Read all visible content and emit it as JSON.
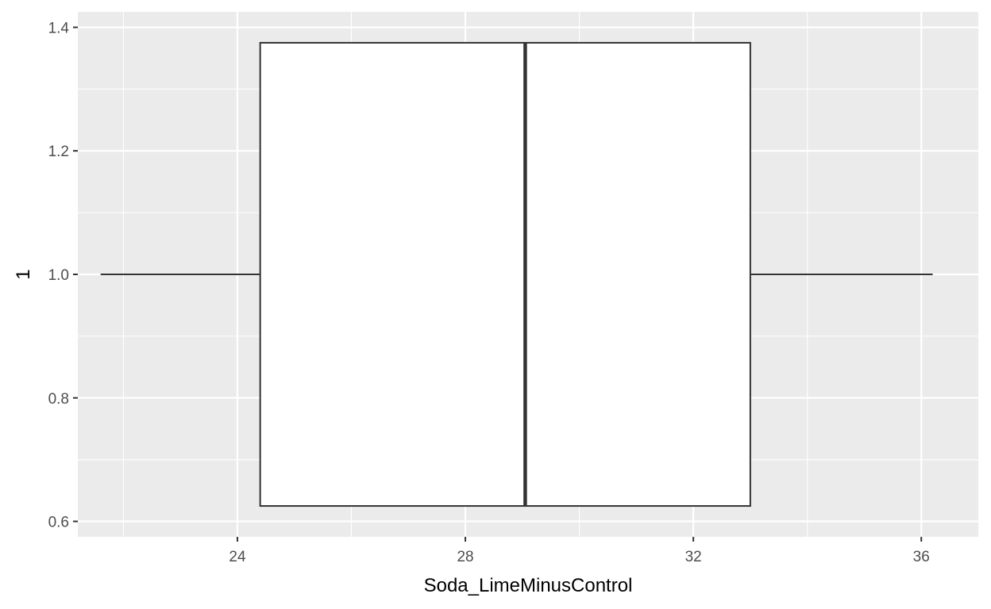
{
  "chart_data": {
    "type": "boxplot",
    "xlabel": "Soda_LimeMinusControl",
    "ylabel": "1",
    "xlim": [
      21.2,
      37.0
    ],
    "ylim": [
      0.575,
      1.425
    ],
    "x_ticks": [
      24,
      28,
      32,
      36
    ],
    "x_minor_ticks": [
      22,
      26,
      30,
      34
    ],
    "y_ticks": [
      0.6,
      0.8,
      1.0,
      1.2,
      1.4
    ],
    "y_tick_labels": [
      "0.6",
      "0.8",
      "1.0",
      "1.2",
      "1.4"
    ],
    "y_minor_ticks": [
      0.7,
      0.9,
      1.1,
      1.3
    ],
    "grid": true,
    "box": {
      "y": 1.0,
      "whisker_low": 21.6,
      "q1": 24.4,
      "median": 29.05,
      "q3": 33.0,
      "whisker_high": 36.2,
      "ymin": 0.625,
      "ymax": 1.375
    },
    "colors": {
      "panel_background": "#ebebeb",
      "grid": "#ffffff",
      "box_fill": "#ffffff",
      "box_stroke": "#333333",
      "tick_label": "#4d4d4d",
      "tick_mark": "#333333"
    }
  }
}
